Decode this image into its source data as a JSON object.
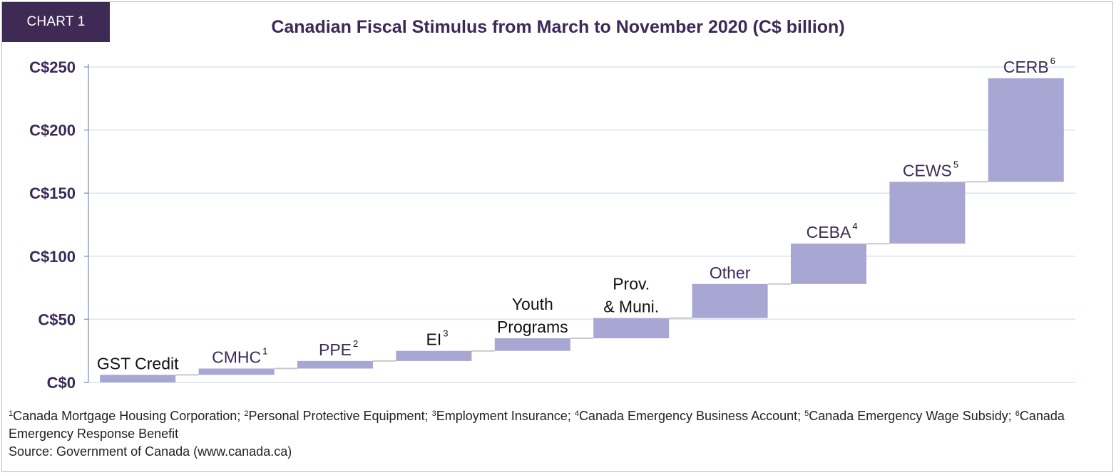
{
  "badge": "CHART 1",
  "footnotes": {
    "n1": "1",
    "t1": "Canada Mortgage Housing Corporation; ",
    "n2": "2",
    "t2": "Personal Protective Equipment; ",
    "n3": "3",
    "t3": "Employment Insurance; ",
    "n4": "4",
    "t4": "Canada Emergency Business Account; ",
    "n5": "5",
    "t5": "Canada Emergency Wage Subsidy; ",
    "n6": "6",
    "t6": "Canada Emergency Response Benefit",
    "source": "Source: Government of Canada (www.canada.ca)"
  },
  "colors": {
    "bar": "#a8a6d2",
    "title": "#3b2a55",
    "badge_bg": "#3f2a56",
    "grid": "#d5e6f2",
    "axis": "#8fa3c0",
    "connector": "#c9c9c9",
    "label_dark": "#111111",
    "label_purple": "#3b2a55"
  },
  "chart_data": {
    "type": "bar",
    "subtype": "waterfall",
    "title": "Canadian Fiscal Stimulus from March to November 2020 (C$ billion)",
    "categories": [
      "GST Credit",
      "CMHC",
      "PPE",
      "EI",
      "Youth Programs",
      "Prov. & Muni.",
      "Other",
      "CEBA",
      "CEWS",
      "CERB"
    ],
    "label_lines": [
      [
        "GST Credit"
      ],
      [
        "CMHC"
      ],
      [
        "PPE"
      ],
      [
        "EI"
      ],
      [
        "Youth",
        "Programs"
      ],
      [
        "Prov.",
        "& Muni."
      ],
      [
        "Other"
      ],
      [
        "CEBA"
      ],
      [
        "CEWS"
      ],
      [
        "CERB"
      ]
    ],
    "label_superscripts": [
      "",
      "1",
      "2",
      "3",
      "",
      "",
      "",
      "4",
      "5",
      "6"
    ],
    "label_color": [
      "dark",
      "purple",
      "purple",
      "dark",
      "dark",
      "dark",
      "purple",
      "purple",
      "purple",
      "purple"
    ],
    "starts": [
      0,
      6,
      11,
      17,
      25,
      35,
      51,
      78,
      110,
      159
    ],
    "ends": [
      6,
      11,
      17,
      25,
      35,
      51,
      78,
      110,
      159,
      241
    ],
    "values": [
      6,
      5,
      6,
      8,
      10,
      16,
      27,
      32,
      49,
      82
    ],
    "ylim": [
      0,
      250
    ],
    "yticks": [
      0,
      50,
      100,
      150,
      200,
      250
    ],
    "ytick_labels": [
      "C$0",
      "C$50",
      "C$100",
      "C$150",
      "C$200",
      "C$250"
    ],
    "xlabel": "",
    "ylabel": "",
    "grid": true,
    "legend": "none"
  }
}
